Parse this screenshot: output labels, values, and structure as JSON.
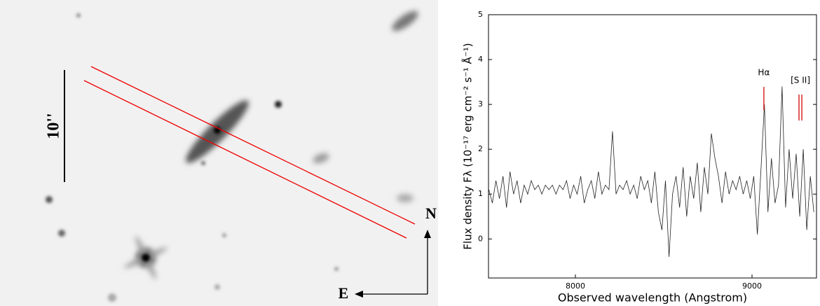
{
  "image": {
    "scale_label": "10''",
    "north": "N",
    "east": "E"
  },
  "chart_data": {
    "type": "line",
    "xlabel": "Observed wavelength (Angstrom)",
    "ylabel": "Flux density Fλ (10⁻¹⁷ erg cm⁻² s⁻¹ Å⁻¹)",
    "xlim": [
      7508,
      9365
    ],
    "ylim": [
      -0.87,
      5
    ],
    "xticks": [
      8000,
      9000
    ],
    "yticks": [
      0,
      1,
      2,
      3,
      4,
      5
    ],
    "grid": false,
    "annotations": [
      {
        "text": "Hα",
        "x": [
          9067
        ],
        "y": [
          2.87,
          3.39
        ]
      },
      {
        "text": "[S II]",
        "x": [
          9266,
          9282
        ],
        "y": [
          2.64,
          3.22
        ]
      }
    ],
    "annotation_color": "#d62728",
    "series": [
      {
        "color": "#222222",
        "x": [
          7510,
          7530,
          7550,
          7570,
          7590,
          7610,
          7630,
          7650,
          7670,
          7690,
          7710,
          7730,
          7750,
          7770,
          7790,
          7810,
          7830,
          7850,
          7870,
          7890,
          7910,
          7930,
          7950,
          7970,
          7990,
          8010,
          8030,
          8050,
          8070,
          8090,
          8110,
          8130,
          8150,
          8170,
          8190,
          8210,
          8230,
          8250,
          8270,
          8290,
          8310,
          8330,
          8350,
          8370,
          8390,
          8410,
          8430,
          8450,
          8470,
          8490,
          8510,
          8530,
          8550,
          8570,
          8590,
          8610,
          8630,
          8650,
          8670,
          8690,
          8710,
          8730,
          8750,
          8770,
          8790,
          8810,
          8830,
          8850,
          8870,
          8890,
          8910,
          8930,
          8950,
          8970,
          8990,
          9010,
          9030,
          9050,
          9070,
          9090,
          9110,
          9130,
          9150,
          9170,
          9190,
          9210,
          9230,
          9250,
          9270,
          9290,
          9310,
          9330,
          9350
        ],
        "values": [
          1.1,
          0.8,
          1.3,
          0.9,
          1.4,
          0.7,
          1.5,
          1.0,
          1.3,
          0.8,
          1.2,
          1.0,
          1.3,
          1.1,
          1.2,
          1.0,
          1.2,
          1.1,
          1.2,
          1.0,
          1.2,
          1.1,
          1.3,
          0.9,
          1.2,
          1.0,
          1.4,
          0.8,
          1.1,
          1.3,
          0.9,
          1.5,
          1.0,
          1.2,
          1.1,
          2.4,
          1.0,
          1.2,
          1.1,
          1.3,
          1.0,
          1.2,
          0.9,
          1.4,
          1.1,
          1.3,
          0.8,
          1.5,
          0.6,
          0.2,
          1.3,
          -0.4,
          1.0,
          1.4,
          0.7,
          1.6,
          0.5,
          1.4,
          0.9,
          1.7,
          0.6,
          1.6,
          1.0,
          2.35,
          1.8,
          1.4,
          0.8,
          1.5,
          1.0,
          1.3,
          1.1,
          1.4,
          1.0,
          1.3,
          0.9,
          1.4,
          0.1,
          1.5,
          3.0,
          0.6,
          1.8,
          0.8,
          1.2,
          3.4,
          0.7,
          2.0,
          0.9,
          1.9,
          0.5,
          2.0,
          0.2,
          1.4,
          0.6
        ]
      }
    ]
  }
}
